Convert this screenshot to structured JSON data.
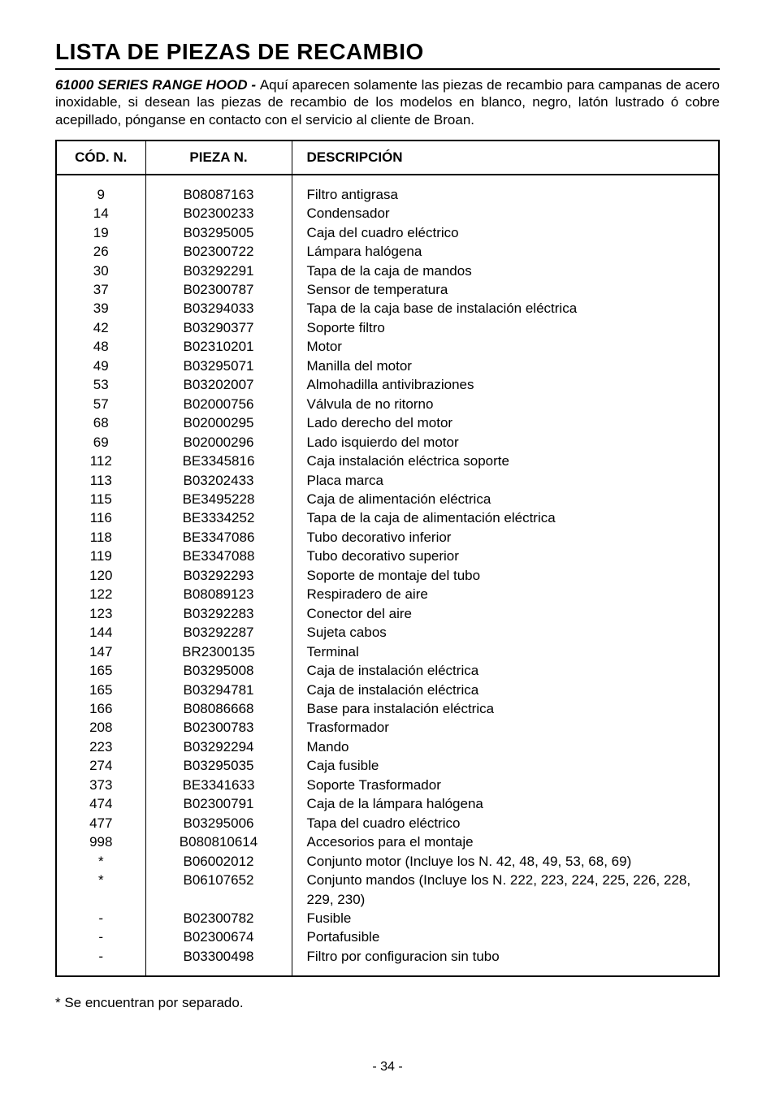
{
  "title": "LISTA DE PIEZAS DE RECAMBIO",
  "intro_bold": "61000 SERIES RANGE HOOD - ",
  "intro_rest": "Aquí aparecen solamente las piezas de recambio para campanas de acero inoxidable, si desean las piezas de recambio de los modelos en blanco, negro, latón lustrado ó cobre acepillado, pónganse en contacto con el servicio al cliente de Broan.",
  "headers": {
    "cod": "CÓD. N.",
    "pieza": "PIEZA N.",
    "desc": "DESCRIPCIÓN"
  },
  "rows": [
    {
      "cod": "9",
      "pieza": "B08087163",
      "desc": "Filtro antigrasa"
    },
    {
      "cod": "14",
      "pieza": "B02300233",
      "desc": "Condensador"
    },
    {
      "cod": "19",
      "pieza": "B03295005",
      "desc": "Caja del cuadro eléctrico"
    },
    {
      "cod": "26",
      "pieza": "B02300722",
      "desc": "Lámpara halógena"
    },
    {
      "cod": "30",
      "pieza": "B03292291",
      "desc": "Tapa de la caja de mandos"
    },
    {
      "cod": "37",
      "pieza": "B02300787",
      "desc": "Sensor de temperatura"
    },
    {
      "cod": "39",
      "pieza": "B03294033",
      "desc": "Tapa de la caja base de instalación eléctrica"
    },
    {
      "cod": "42",
      "pieza": "B03290377",
      "desc": "Soporte filtro"
    },
    {
      "cod": "48",
      "pieza": "B02310201",
      "desc": "Motor"
    },
    {
      "cod": "49",
      "pieza": "B03295071",
      "desc": "Manilla del motor"
    },
    {
      "cod": "53",
      "pieza": "B03202007",
      "desc": "Almohadilla antivibraziones"
    },
    {
      "cod": "57",
      "pieza": "B02000756",
      "desc": "Válvula de no ritorno"
    },
    {
      "cod": "68",
      "pieza": "B02000295",
      "desc": "Lado derecho del motor"
    },
    {
      "cod": "69",
      "pieza": "B02000296",
      "desc": "Lado isquierdo del motor"
    },
    {
      "cod": "112",
      "pieza": "BE3345816",
      "desc": "Caja instalación eléctrica soporte"
    },
    {
      "cod": "113",
      "pieza": "B03202433",
      "desc": "Placa marca"
    },
    {
      "cod": "115",
      "pieza": "BE3495228",
      "desc": "Caja de alimentación eléctrica"
    },
    {
      "cod": "116",
      "pieza": "BE3334252",
      "desc": "Tapa de la caja de alimentación eléctrica"
    },
    {
      "cod": "118",
      "pieza": "BE3347086",
      "desc": "Tubo decorativo inferior"
    },
    {
      "cod": "119",
      "pieza": "BE3347088",
      "desc": "Tubo decorativo superior"
    },
    {
      "cod": "120",
      "pieza": "B03292293",
      "desc": "Soporte de montaje del tubo"
    },
    {
      "cod": "122",
      "pieza": "B08089123",
      "desc": "Respiradero de aire"
    },
    {
      "cod": "123",
      "pieza": "B03292283",
      "desc": "Conector del aire"
    },
    {
      "cod": "144",
      "pieza": "B03292287",
      "desc": "Sujeta cabos"
    },
    {
      "cod": "147",
      "pieza": "BR2300135",
      "desc": "Terminal"
    },
    {
      "cod": "165",
      "pieza": "B03295008",
      "desc": "Caja de instalación eléctrica"
    },
    {
      "cod": "165",
      "pieza": "B03294781",
      "desc": "Caja de instalación eléctrica"
    },
    {
      "cod": "166",
      "pieza": "B08086668",
      "desc": "Base para instalación eléctrica"
    },
    {
      "cod": "208",
      "pieza": "B02300783",
      "desc": "Trasformador"
    },
    {
      "cod": "223",
      "pieza": "B03292294",
      "desc": "Mando"
    },
    {
      "cod": "274",
      "pieza": "B03295035",
      "desc": "Caja fusible"
    },
    {
      "cod": "373",
      "pieza": "BE3341633",
      "desc": "Soporte Trasformador"
    },
    {
      "cod": "474",
      "pieza": "B02300791",
      "desc": "Caja de la lámpara halógena"
    },
    {
      "cod": "477",
      "pieza": "B03295006",
      "desc": "Tapa del cuadro eléctrico"
    },
    {
      "cod": "998",
      "pieza": "B080810614",
      "desc": "Accesorios para el montaje"
    },
    {
      "cod": "*",
      "pieza": "B06002012",
      "desc": "Conjunto motor (Incluye los N. 42, 48, 49, 53, 68, 69)"
    },
    {
      "cod": "*",
      "pieza": "B06107652",
      "desc": "Conjunto mandos (Incluye los N. 222, 223, 224, 225, 226, 228, 229, 230)"
    },
    {
      "cod": "-",
      "pieza": "B02300782",
      "desc": "Fusible"
    },
    {
      "cod": "-",
      "pieza": "B02300674",
      "desc": "Portafusible"
    },
    {
      "cod": "-",
      "pieza": "B03300498",
      "desc": "Filtro por configuracion sin tubo"
    }
  ],
  "footnote": "* Se encuentran por separado.",
  "pagenum": "- 34 -"
}
